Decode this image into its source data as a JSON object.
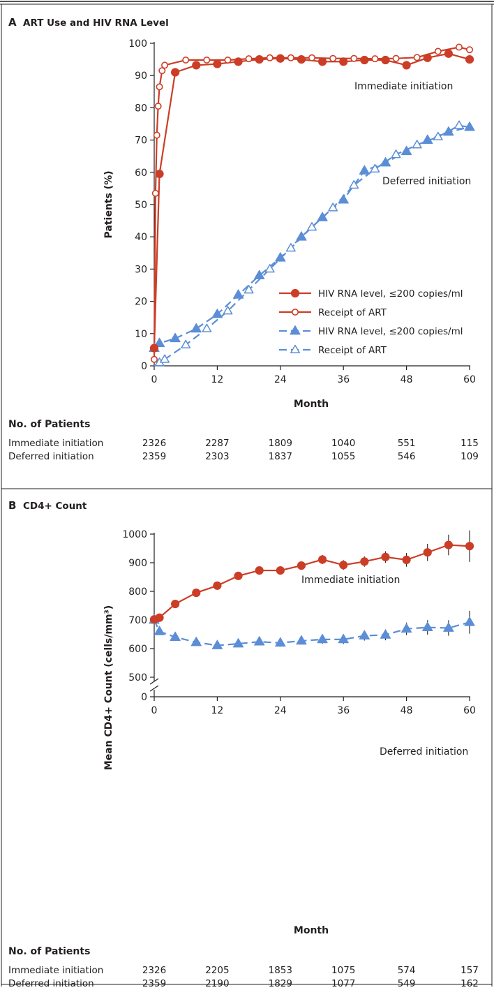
{
  "colors": {
    "immediate": "#cc3d26",
    "deferred": "#5b8ed6",
    "frame": "#231f20"
  },
  "panelA": {
    "letter": "A",
    "title": "ART Use and HIV RNA Level",
    "ylabel": "Patients (%)",
    "xlabel": "Month",
    "yticks": [
      "0",
      "10",
      "20",
      "30",
      "40",
      "50",
      "60",
      "70",
      "80",
      "90",
      "100"
    ],
    "xticks": [
      "0",
      "12",
      "24",
      "36",
      "48",
      "60"
    ],
    "annotation_immediate": "Immediate initiation",
    "annotation_deferred": "Deferred initiation",
    "legend": [
      {
        "label": "HIV RNA level, ≤200 copies/ml",
        "group": "immediate",
        "marker": "circle",
        "filled": true,
        "dashed": false
      },
      {
        "label": "Receipt of ART",
        "group": "immediate",
        "marker": "circle",
        "filled": false,
        "dashed": false
      },
      {
        "label": "HIV RNA level, ≤200 copies/ml",
        "group": "deferred",
        "marker": "triangle",
        "filled": true,
        "dashed": true
      },
      {
        "label": "Receipt of ART",
        "group": "deferred",
        "marker": "triangle",
        "filled": false,
        "dashed": true
      }
    ],
    "np_heading": "No. of Patients",
    "np_rows": [
      {
        "label": "Immediate initiation",
        "values": [
          "2326",
          "2287",
          "1809",
          "1040",
          "551",
          "115"
        ]
      },
      {
        "label": "Deferred initiation",
        "values": [
          "2359",
          "2303",
          "1837",
          "1055",
          "546",
          "109"
        ]
      }
    ]
  },
  "panelB": {
    "letter": "B",
    "title": "CD4+ Count",
    "ylabel": "Mean CD4+ Count (cells/mm³)",
    "xlabel": "Month",
    "yticks": [
      "0",
      "500",
      "600",
      "700",
      "800",
      "900",
      "1000"
    ],
    "xticks": [
      "0",
      "12",
      "24",
      "36",
      "48",
      "60"
    ],
    "annotation_immediate": "Immediate initiation",
    "annotation_deferred": "Deferred initiation",
    "np_heading": "No. of Patients",
    "np_rows": [
      {
        "label": "Immediate initiation",
        "values": [
          "2326",
          "2205",
          "1853",
          "1075",
          "574",
          "157"
        ]
      },
      {
        "label": "Deferred initiation",
        "values": [
          "2359",
          "2190",
          "1829",
          "1077",
          "549",
          "162"
        ]
      }
    ]
  },
  "chart_data": [
    {
      "type": "line",
      "title": "ART Use and HIV RNA Level",
      "xlabel": "Month",
      "ylabel": "Patients (%)",
      "xlim": [
        0,
        60
      ],
      "ylim": [
        0,
        100
      ],
      "series": [
        {
          "name": "HIV RNA level, ≤200 copies/ml",
          "group": "Immediate initiation",
          "marker": "filled-circle",
          "line": "solid",
          "x": [
            0,
            1,
            4,
            8,
            12,
            16,
            20,
            24,
            28,
            32,
            36,
            40,
            44,
            48,
            52,
            56,
            60
          ],
          "y": [
            5.5,
            59.5,
            91,
            93.2,
            93.6,
            94.3,
            95,
            95.3,
            95,
            94.3,
            94.3,
            94.8,
            94.8,
            93.2,
            95.5,
            96.8,
            95
          ]
        },
        {
          "name": "Receipt of ART",
          "group": "Immediate initiation",
          "marker": "open-circle",
          "line": "solid",
          "x": [
            0,
            0.25,
            0.5,
            0.75,
            1,
            1.5,
            2,
            6,
            10,
            14,
            18,
            22,
            26,
            30,
            34,
            38,
            42,
            46,
            50,
            54,
            58,
            60
          ],
          "y": [
            2,
            53.5,
            71.5,
            80.5,
            86.5,
            91.5,
            93.2,
            94.8,
            94.8,
            94.8,
            95.2,
            95.5,
            95.5,
            95.5,
            95.3,
            95.3,
            95.2,
            95.3,
            95.6,
            97.5,
            98.8,
            98
          ]
        },
        {
          "name": "HIV RNA level, ≤200 copies/ml",
          "group": "Deferred initiation",
          "marker": "filled-triangle",
          "line": "dashed",
          "x": [
            0,
            1,
            4,
            8,
            12,
            16,
            20,
            24,
            28,
            32,
            36,
            40,
            44,
            48,
            52,
            56,
            60
          ],
          "y": [
            5.5,
            7,
            8.5,
            11.5,
            16,
            22,
            28,
            33.5,
            40,
            46,
            51.5,
            60.5,
            63,
            66.5,
            70,
            72.5,
            74
          ]
        },
        {
          "name": "Receipt of ART",
          "group": "Deferred initiation",
          "marker": "open-triangle",
          "line": "dashed",
          "x": [
            0,
            0.5,
            1,
            2,
            6,
            10,
            14,
            18,
            22,
            26,
            30,
            34,
            38,
            42,
            46,
            50,
            54,
            58,
            60
          ],
          "y": [
            0,
            0.5,
            1,
            2,
            6.5,
            11.5,
            17,
            23.5,
            30,
            36.5,
            43,
            49,
            56,
            61,
            65.5,
            68.5,
            71,
            74.5,
            74
          ]
        }
      ]
    },
    {
      "type": "line",
      "title": "CD4+ Count",
      "xlabel": "Month",
      "ylabel": "Mean CD4+ Count (cells/mm³)",
      "xlim": [
        0,
        60
      ],
      "ylim": [
        0,
        1000
      ],
      "y_axis_break": [
        0,
        500
      ],
      "series": [
        {
          "name": "Immediate initiation",
          "marker": "filled-circle",
          "line": "solid",
          "x": [
            0,
            1,
            4,
            8,
            12,
            16,
            20,
            24,
            28,
            32,
            36,
            40,
            44,
            48,
            52,
            56,
            60
          ],
          "y": [
            702,
            708,
            756,
            795,
            820,
            854,
            873,
            873,
            890,
            911,
            892,
            904,
            920,
            910,
            936,
            962,
            958
          ],
          "error_low": [
            702,
            703,
            747,
            785,
            809,
            843,
            862,
            861,
            877,
            895,
            875,
            886,
            900,
            886,
            906,
            926,
            903
          ],
          "error_high": [
            702,
            713,
            765,
            805,
            831,
            865,
            884,
            885,
            903,
            927,
            909,
            922,
            940,
            934,
            966,
            998,
            1013
          ]
        },
        {
          "name": "Deferred initiation",
          "marker": "filled-triangle",
          "line": "dashed",
          "x": [
            0,
            1,
            4,
            8,
            12,
            16,
            20,
            24,
            28,
            32,
            36,
            40,
            44,
            48,
            52,
            56,
            60
          ],
          "y": [
            700,
            660,
            640,
            622,
            611,
            617,
            624,
            620,
            627,
            632,
            632,
            645,
            648,
            669,
            674,
            672,
            692
          ],
          "error_low": [
            700,
            655,
            632,
            613,
            600,
            606,
            612,
            607,
            614,
            617,
            616,
            628,
            629,
            647,
            649,
            645,
            652
          ],
          "error_high": [
            700,
            665,
            648,
            631,
            622,
            628,
            636,
            633,
            640,
            647,
            648,
            662,
            667,
            691,
            699,
            699,
            732
          ]
        }
      ]
    }
  ]
}
